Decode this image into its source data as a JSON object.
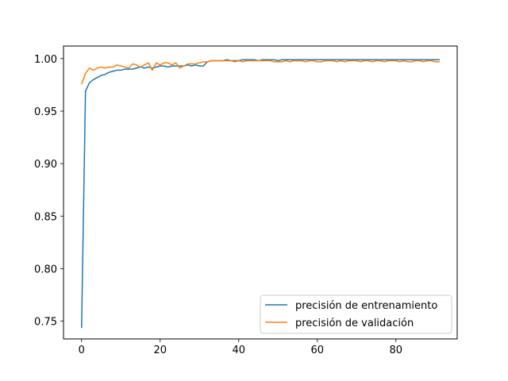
{
  "chart_data": {
    "type": "line",
    "title": "",
    "xlabel": "",
    "ylabel": "",
    "xlim": [
      -4.6,
      95.6
    ],
    "ylim": [
      0.733,
      1.012
    ],
    "xticks": [
      0,
      20,
      40,
      60,
      80
    ],
    "yticks": [
      0.75,
      0.8,
      0.85,
      0.9,
      0.95,
      1.0
    ],
    "xtick_labels": [
      "0",
      "20",
      "40",
      "60",
      "80"
    ],
    "ytick_labels": [
      "0.75",
      "0.80",
      "0.85",
      "0.90",
      "0.95",
      "1.00"
    ],
    "grid": false,
    "legend_position": "lower-right",
    "series": [
      {
        "name": "precisión de entrenamiento",
        "color": "#1f77b4",
        "x": [
          0,
          1,
          2,
          3,
          4,
          5,
          6,
          7,
          8,
          9,
          10,
          11,
          12,
          13,
          14,
          15,
          16,
          17,
          18,
          19,
          20,
          21,
          22,
          23,
          24,
          25,
          26,
          27,
          28,
          29,
          30,
          31,
          32,
          33,
          34,
          35,
          36,
          37,
          38,
          39,
          40,
          41,
          42,
          43,
          44,
          45,
          46,
          47,
          48,
          49,
          50,
          51,
          52,
          53,
          54,
          55,
          56,
          57,
          58,
          59,
          60,
          61,
          62,
          63,
          64,
          65,
          66,
          67,
          68,
          69,
          70,
          71,
          72,
          73,
          74,
          75,
          76,
          77,
          78,
          79,
          80,
          81,
          82,
          83,
          84,
          85,
          86,
          87,
          88,
          89,
          90,
          91
        ],
        "y": [
          0.744,
          0.969,
          0.977,
          0.98,
          0.982,
          0.984,
          0.985,
          0.987,
          0.988,
          0.989,
          0.989,
          0.99,
          0.99,
          0.99,
          0.991,
          0.992,
          0.991,
          0.992,
          0.991,
          0.992,
          0.993,
          0.993,
          0.992,
          0.993,
          0.993,
          0.993,
          0.993,
          0.994,
          0.993,
          0.994,
          0.993,
          0.993,
          0.997,
          0.998,
          0.998,
          0.998,
          0.998,
          0.999,
          0.998,
          0.998,
          0.998,
          0.999,
          0.999,
          0.999,
          0.999,
          0.998,
          0.999,
          0.999,
          0.999,
          0.999,
          0.998,
          0.999,
          0.999,
          0.999,
          0.999,
          0.999,
          0.999,
          0.999,
          0.999,
          0.999,
          0.999,
          0.999,
          0.999,
          0.999,
          0.999,
          0.999,
          0.999,
          0.999,
          0.999,
          0.999,
          0.999,
          0.999,
          0.999,
          0.999,
          0.999,
          0.999,
          0.999,
          0.999,
          0.999,
          0.999,
          0.999,
          0.999,
          0.999,
          0.999,
          0.999,
          0.999,
          0.999,
          0.999,
          0.999,
          0.999,
          0.999,
          0.999
        ]
      },
      {
        "name": "precisión de validación",
        "color": "#ff7f0e",
        "x": [
          0,
          1,
          2,
          3,
          4,
          5,
          6,
          7,
          8,
          9,
          10,
          11,
          12,
          13,
          14,
          15,
          16,
          17,
          18,
          19,
          20,
          21,
          22,
          23,
          24,
          25,
          26,
          27,
          28,
          29,
          30,
          31,
          32,
          33,
          34,
          35,
          36,
          37,
          38,
          39,
          40,
          41,
          42,
          43,
          44,
          45,
          46,
          47,
          48,
          49,
          50,
          51,
          52,
          53,
          54,
          55,
          56,
          57,
          58,
          59,
          60,
          61,
          62,
          63,
          64,
          65,
          66,
          67,
          68,
          69,
          70,
          71,
          72,
          73,
          74,
          75,
          76,
          77,
          78,
          79,
          80,
          81,
          82,
          83,
          84,
          85,
          86,
          87,
          88,
          89,
          90,
          91
        ],
        "y": [
          0.976,
          0.986,
          0.991,
          0.989,
          0.991,
          0.992,
          0.991,
          0.992,
          0.992,
          0.994,
          0.993,
          0.992,
          0.991,
          0.995,
          0.994,
          0.992,
          0.994,
          0.996,
          0.989,
          0.996,
          0.994,
          0.996,
          0.996,
          0.994,
          0.996,
          0.991,
          0.993,
          0.995,
          0.995,
          0.995,
          0.996,
          0.997,
          0.997,
          0.998,
          0.998,
          0.998,
          0.998,
          0.998,
          0.998,
          0.997,
          0.998,
          0.997,
          0.998,
          0.998,
          0.998,
          0.998,
          0.998,
          0.998,
          0.998,
          0.997,
          0.997,
          0.997,
          0.998,
          0.997,
          0.998,
          0.998,
          0.998,
          0.997,
          0.998,
          0.998,
          0.997,
          0.997,
          0.998,
          0.998,
          0.998,
          0.997,
          0.998,
          0.997,
          0.998,
          0.998,
          0.998,
          0.997,
          0.998,
          0.998,
          0.997,
          0.998,
          0.998,
          0.997,
          0.998,
          0.998,
          0.998,
          0.997,
          0.998,
          0.997,
          0.997,
          0.998,
          0.998,
          0.997,
          0.998,
          0.998,
          0.997,
          0.997
        ]
      }
    ]
  }
}
